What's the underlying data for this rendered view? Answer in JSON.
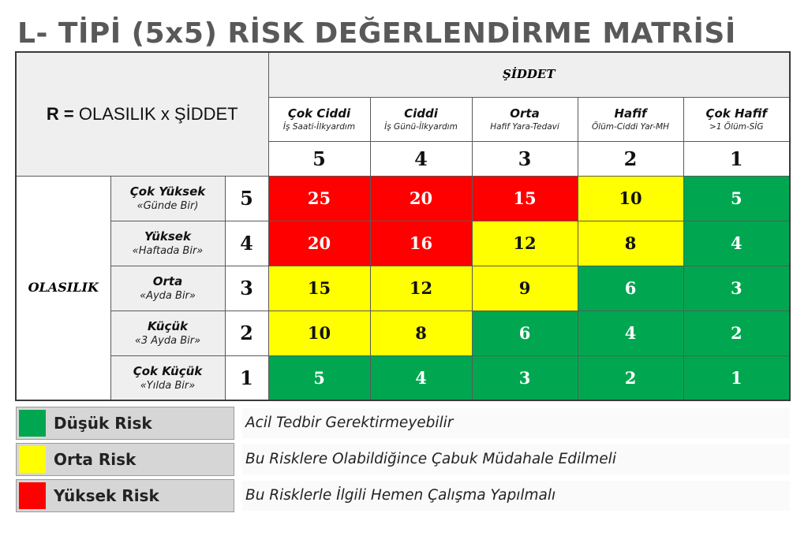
{
  "title": "L- TİPİ (5x5) RİSK DEĞERLENDİRME MATRİSİ",
  "formula": {
    "r": "R =",
    "rest": "OLASILIK x ŞİDDET"
  },
  "severity_header": "ŞİDDET",
  "severity_columns": [
    {
      "title": "Çok Ciddi",
      "sub": "İş Saati-İlkyardım",
      "score": "5"
    },
    {
      "title": "Ciddi",
      "sub": "İş Günü-İlkyardım",
      "score": "4"
    },
    {
      "title": "Orta",
      "sub": "Hafif Yara-Tedavi",
      "score": "3"
    },
    {
      "title": "Hafif",
      "sub": "Ölüm-Ciddi Yar-MH",
      "score": "2"
    },
    {
      "title": "Çok Hafif",
      "sub": ">1 Ölüm-SİG",
      "score": "1"
    }
  ],
  "probability_header": "OLASILIK",
  "probability_rows": [
    {
      "title": "Çok Yüksek",
      "sub": "«Günde Bir)",
      "score": "5",
      "values": [
        "25",
        "20",
        "15",
        "10",
        "5"
      ],
      "levels": [
        "r",
        "r",
        "r",
        "y",
        "g"
      ]
    },
    {
      "title": "Yüksek",
      "sub": "«Haftada Bir»",
      "score": "4",
      "values": [
        "20",
        "16",
        "12",
        "8",
        "4"
      ],
      "levels": [
        "r",
        "r",
        "y",
        "y",
        "g"
      ]
    },
    {
      "title": "Orta",
      "sub": "«Ayda Bir»",
      "score": "3",
      "values": [
        "15",
        "12",
        "9",
        "6",
        "3"
      ],
      "levels": [
        "y",
        "y",
        "y",
        "g",
        "g"
      ]
    },
    {
      "title": "Küçük",
      "sub": "«3 Ayda Bir»",
      "score": "2",
      "values": [
        "10",
        "8",
        "6",
        "4",
        "2"
      ],
      "levels": [
        "y",
        "y",
        "g",
        "g",
        "g"
      ]
    },
    {
      "title": "Çok Küçük",
      "sub": "«Yılda Bir»",
      "score": "1",
      "values": [
        "5",
        "4",
        "3",
        "2",
        "1"
      ],
      "levels": [
        "g",
        "g",
        "g",
        "g",
        "g"
      ]
    }
  ],
  "legend": [
    {
      "name": "Düşük Risk",
      "color": "#00a650",
      "desc": "Acil Tedbir Gerektirmeyebilir"
    },
    {
      "name": "Orta Risk",
      "color": "#ffff00",
      "desc": "Bu Risklere Olabildiğince Çabuk Müdahale Edilmeli"
    },
    {
      "name": "Yüksek Risk",
      "color": "#ff0000",
      "desc": "Bu Risklerle İlgili Hemen Çalışma Yapılmalı"
    }
  ]
}
